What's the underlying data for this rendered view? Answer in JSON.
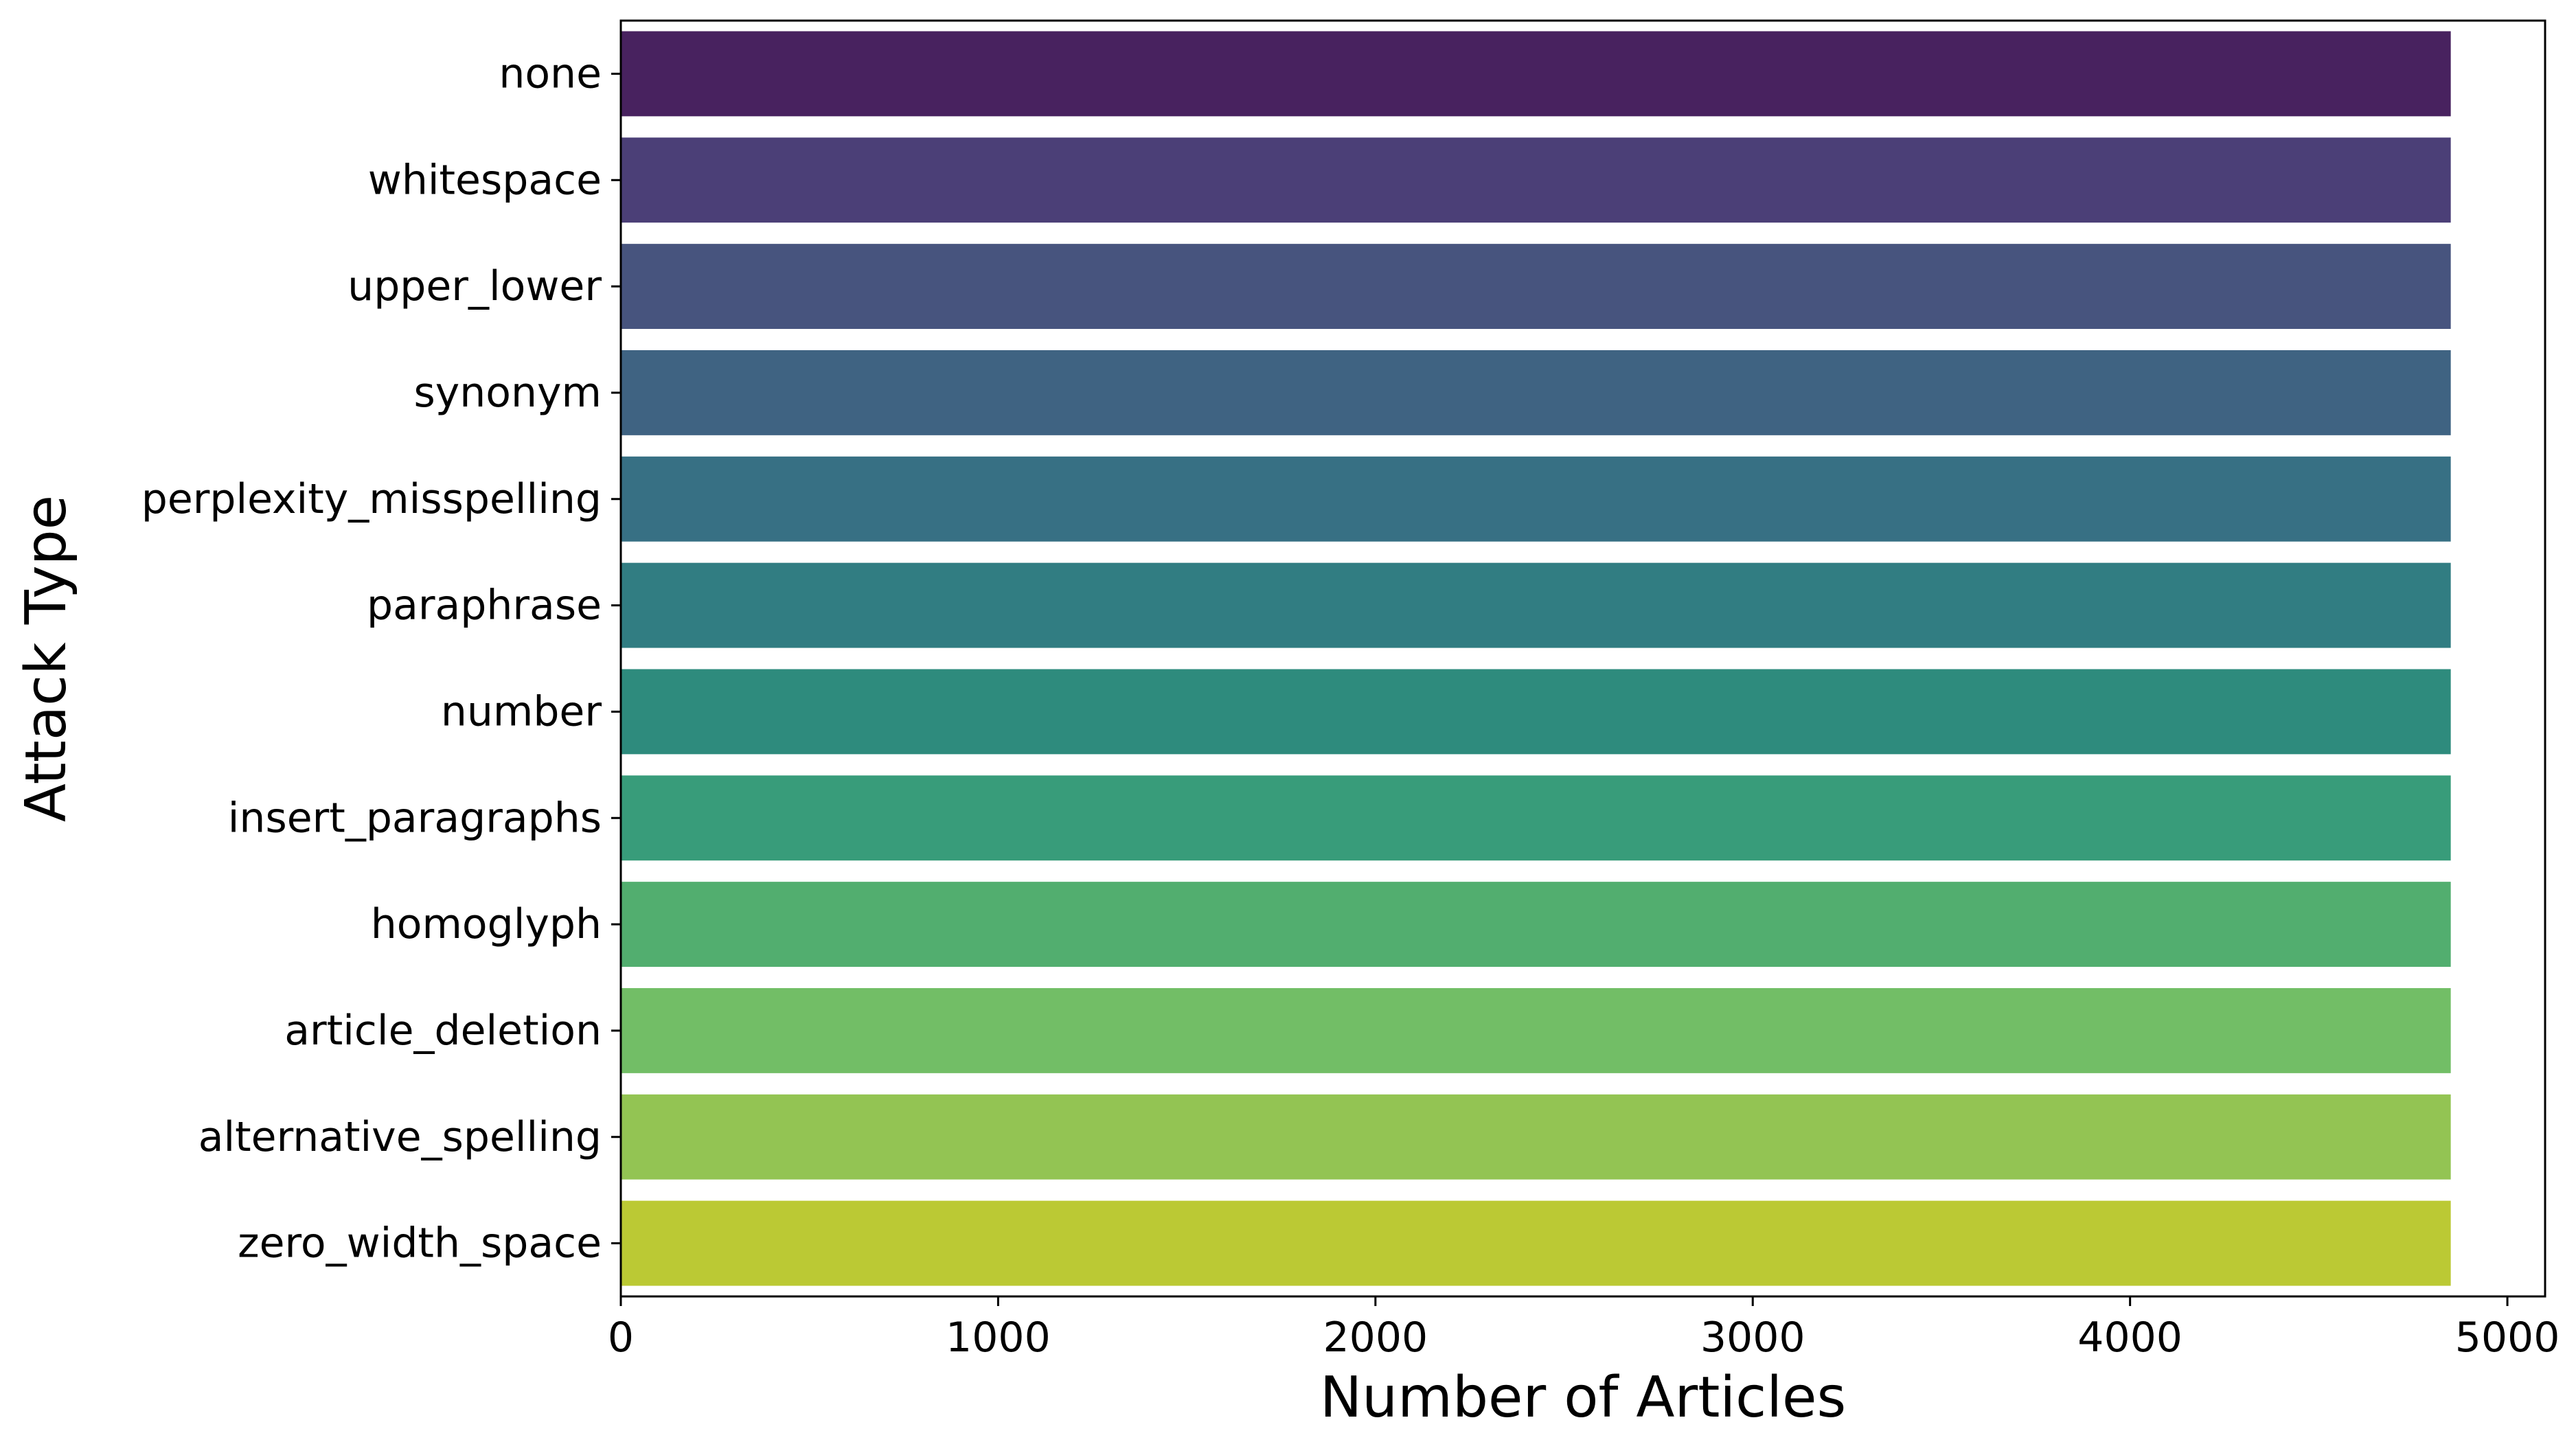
{
  "chart_data": {
    "type": "bar",
    "orientation": "horizontal",
    "title": "",
    "xlabel": "Number of Articles",
    "ylabel": "Attack Type",
    "categories": [
      "none",
      "whitespace",
      "upper_lower",
      "synonym",
      "perplexity_misspelling",
      "paraphrase",
      "number",
      "insert_paragraphs",
      "homoglyph",
      "article_deletion",
      "alternative_spelling",
      "zero_width_space"
    ],
    "values": [
      4850,
      4850,
      4850,
      4850,
      4850,
      4850,
      4850,
      4850,
      4850,
      4850,
      4850,
      4850
    ],
    "colors": [
      "#48225f",
      "#4b3f77",
      "#47547e",
      "#3f6382",
      "#377084",
      "#317d82",
      "#2e8b7d",
      "#389c7a",
      "#52ae6f",
      "#72be66",
      "#93c453",
      "#bbc934"
    ],
    "xlim": [
      0,
      5100
    ],
    "xticks": [
      0,
      1000,
      2000,
      3000,
      4000,
      5000
    ],
    "grid": false,
    "legend": "none"
  }
}
